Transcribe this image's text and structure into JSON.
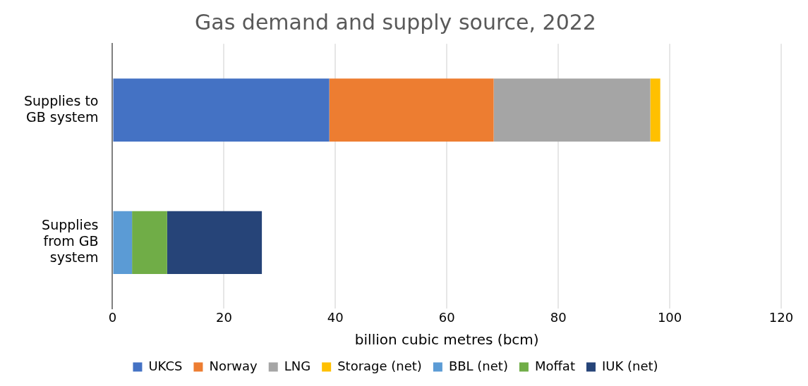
{
  "chart_data": {
    "type": "bar",
    "orientation": "horizontal",
    "stacked": true,
    "title": "Gas demand and supply source, 2022",
    "xlabel": "billion cubic metres (bcm)",
    "categories": [
      "Supplies to\nGB system",
      "Supplies\nfrom GB\nsystem"
    ],
    "series": [
      {
        "name": "UKCS",
        "color": "#4472c4",
        "values": [
          38.9,
          null
        ]
      },
      {
        "name": "Norway",
        "color": "#ed7d31",
        "values": [
          29.5,
          null
        ]
      },
      {
        "name": "LNG",
        "color": "#a5a5a5",
        "values": [
          28.1,
          null
        ]
      },
      {
        "name": "Storage (net)",
        "color": "#ffc000",
        "values": [
          1.8,
          null
        ]
      },
      {
        "name": "BBL (net)",
        "color": "#5b9bd5",
        "values": [
          null,
          3.5
        ]
      },
      {
        "name": "Moffat",
        "color": "#70ad47",
        "values": [
          null,
          6.3
        ]
      },
      {
        "name": "IUK (net)",
        "color": "#264478",
        "values": [
          null,
          17.0
        ]
      }
    ],
    "xlim": [
      0,
      120
    ],
    "xticks": [
      0,
      20,
      40,
      60,
      80,
      100,
      120
    ],
    "grid": "x",
    "legend": "bottom"
  }
}
